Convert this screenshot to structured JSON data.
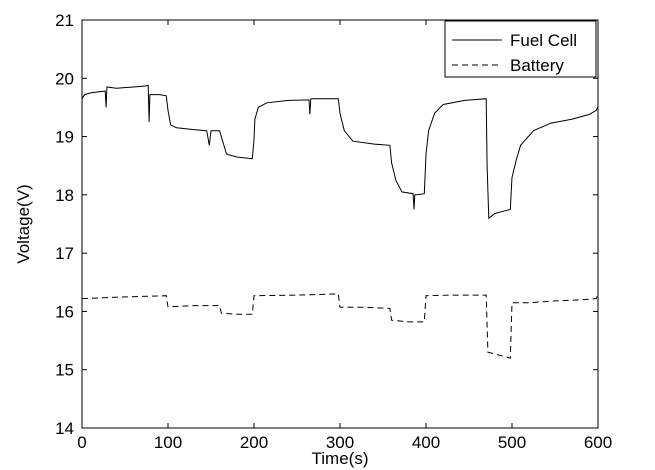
{
  "chart_data": {
    "type": "line",
    "title": "",
    "xlabel": "Time(s)",
    "ylabel": "Voltage(V)",
    "xlim": [
      0,
      600
    ],
    "ylim": [
      14,
      21
    ],
    "xticks": [
      0,
      100,
      200,
      300,
      400,
      500,
      600
    ],
    "yticks": [
      14,
      15,
      16,
      17,
      18,
      19,
      20,
      21
    ],
    "grid": false,
    "legend_position": "top-right",
    "series": [
      {
        "name": "Fuel Cell",
        "line_style": "solid",
        "color": "#000000",
        "points": [
          [
            0,
            19.65
          ],
          [
            3,
            19.72
          ],
          [
            10,
            19.75
          ],
          [
            20,
            19.77
          ],
          [
            27,
            19.78
          ],
          [
            28,
            19.5
          ],
          [
            29,
            19.85
          ],
          [
            40,
            19.83
          ],
          [
            60,
            19.85
          ],
          [
            75,
            19.87
          ],
          [
            77,
            19.88
          ],
          [
            78,
            19.25
          ],
          [
            79,
            19.72
          ],
          [
            90,
            19.72
          ],
          [
            98,
            19.7
          ],
          [
            100,
            19.45
          ],
          [
            103,
            19.2
          ],
          [
            110,
            19.15
          ],
          [
            130,
            19.12
          ],
          [
            145,
            19.1
          ],
          [
            148,
            18.85
          ],
          [
            150,
            19.1
          ],
          [
            160,
            19.1
          ],
          [
            163,
            18.95
          ],
          [
            168,
            18.7
          ],
          [
            180,
            18.65
          ],
          [
            198,
            18.62
          ],
          [
            200,
            18.95
          ],
          [
            201,
            19.3
          ],
          [
            205,
            19.5
          ],
          [
            215,
            19.58
          ],
          [
            240,
            19.62
          ],
          [
            264,
            19.63
          ],
          [
            265,
            19.38
          ],
          [
            266,
            19.65
          ],
          [
            280,
            19.65
          ],
          [
            298,
            19.65
          ],
          [
            300,
            19.4
          ],
          [
            305,
            19.1
          ],
          [
            315,
            18.92
          ],
          [
            340,
            18.87
          ],
          [
            358,
            18.85
          ],
          [
            360,
            18.55
          ],
          [
            365,
            18.25
          ],
          [
            372,
            18.05
          ],
          [
            385,
            18.02
          ],
          [
            386,
            17.75
          ],
          [
            387,
            18.0
          ],
          [
            398,
            18.02
          ],
          [
            400,
            18.7
          ],
          [
            403,
            19.1
          ],
          [
            410,
            19.4
          ],
          [
            420,
            19.55
          ],
          [
            445,
            19.62
          ],
          [
            470,
            19.65
          ],
          [
            471,
            18.5
          ],
          [
            473,
            17.6
          ],
          [
            480,
            17.68
          ],
          [
            490,
            17.72
          ],
          [
            498,
            17.75
          ],
          [
            500,
            18.3
          ],
          [
            505,
            18.6
          ],
          [
            510,
            18.85
          ],
          [
            525,
            19.1
          ],
          [
            545,
            19.23
          ],
          [
            570,
            19.3
          ],
          [
            590,
            19.38
          ],
          [
            598,
            19.45
          ],
          [
            600,
            19.52
          ]
        ]
      },
      {
        "name": "Battery",
        "line_style": "dashed",
        "color": "#000000",
        "points": [
          [
            0,
            16.22
          ],
          [
            50,
            16.25
          ],
          [
            98,
            16.27
          ],
          [
            100,
            16.08
          ],
          [
            130,
            16.1
          ],
          [
            160,
            16.1
          ],
          [
            162,
            15.97
          ],
          [
            180,
            15.95
          ],
          [
            198,
            15.95
          ],
          [
            200,
            16.27
          ],
          [
            250,
            16.28
          ],
          [
            298,
            16.3
          ],
          [
            300,
            16.07
          ],
          [
            330,
            16.07
          ],
          [
            358,
            16.05
          ],
          [
            360,
            15.85
          ],
          [
            380,
            15.82
          ],
          [
            398,
            15.82
          ],
          [
            400,
            16.27
          ],
          [
            430,
            16.28
          ],
          [
            470,
            16.28
          ],
          [
            472,
            15.3
          ],
          [
            485,
            15.25
          ],
          [
            498,
            15.2
          ],
          [
            500,
            16.15
          ],
          [
            520,
            16.15
          ],
          [
            550,
            16.18
          ],
          [
            580,
            16.2
          ],
          [
            598,
            16.22
          ],
          [
            600,
            16.3
          ]
        ]
      }
    ]
  }
}
